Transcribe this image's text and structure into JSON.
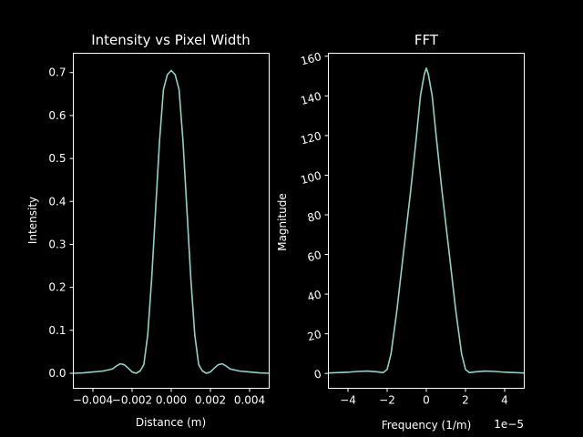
{
  "chart_data": [
    {
      "type": "line",
      "title": "Intensity vs Pixel Width",
      "xlabel": "Distance (m)",
      "ylabel": "Intensity",
      "xlim": [
        -0.005,
        0.005
      ],
      "ylim": [
        -0.035,
        0.745
      ],
      "grid": false,
      "x_ticks": [
        -0.004,
        -0.002,
        0.0,
        0.002,
        0.004
      ],
      "x_tick_labels": [
        "−0.004",
        "−0.002",
        "0.000",
        "0.002",
        "0.004"
      ],
      "y_ticks": [
        0.0,
        0.1,
        0.2,
        0.3,
        0.4,
        0.5,
        0.6,
        0.7
      ],
      "y_tick_labels": [
        "0.0",
        "0.1",
        "0.2",
        "0.3",
        "0.4",
        "0.5",
        "0.6",
        "0.7"
      ],
      "series": [
        {
          "color": "#8dd3c7",
          "x": [
            -0.005,
            -0.0045,
            -0.004,
            -0.0035,
            -0.003,
            -0.0028,
            -0.0026,
            -0.0024,
            -0.0022,
            -0.002,
            -0.0018,
            -0.0016,
            -0.0015,
            -0.0014,
            -0.0012,
            -0.001,
            -0.0008,
            -0.0006,
            -0.0004,
            -0.0002,
            -0.0001,
            0.0,
            0.0001,
            0.0002,
            0.0004,
            0.0006,
            0.0008,
            0.001,
            0.0012,
            0.0014,
            0.0015,
            0.0016,
            0.0018,
            0.002,
            0.0022,
            0.0024,
            0.0026,
            0.0028,
            0.003,
            0.0035,
            0.004,
            0.0045,
            0.005
          ],
          "y": [
            0.0,
            0.001,
            0.003,
            0.005,
            0.01,
            0.017,
            0.022,
            0.02,
            0.012,
            0.003,
            0.0,
            0.005,
            0.012,
            0.02,
            0.09,
            0.22,
            0.38,
            0.54,
            0.66,
            0.695,
            0.7,
            0.705,
            0.7,
            0.695,
            0.66,
            0.54,
            0.38,
            0.22,
            0.09,
            0.02,
            0.012,
            0.005,
            0.0,
            0.003,
            0.012,
            0.02,
            0.022,
            0.017,
            0.01,
            0.005,
            0.003,
            0.001,
            0.0
          ]
        }
      ]
    },
    {
      "type": "line",
      "title": "FFT",
      "xlabel": "Frequency (1/m)",
      "ylabel": "Magnitude",
      "offset_text": "1e−5",
      "xlim": [
        -5,
        5
      ],
      "ylim": [
        -7.5,
        161.5
      ],
      "grid": false,
      "x_ticks": [
        -4,
        -2,
        0,
        2,
        4
      ],
      "x_tick_labels": [
        "−4",
        "−2",
        "0",
        "2",
        "4"
      ],
      "y_ticks": [
        0,
        20,
        40,
        60,
        80,
        100,
        120,
        140,
        160
      ],
      "y_tick_labels": [
        "0",
        "20",
        "40",
        "60",
        "80",
        "100",
        "120",
        "140",
        "160"
      ],
      "series": [
        {
          "color": "#8dd3c7",
          "x": [
            -5,
            -4,
            -3.5,
            -3,
            -2.5,
            -2.2,
            -2.0,
            -1.8,
            -1.5,
            -1.2,
            -1.0,
            -0.8,
            -0.5,
            -0.3,
            -0.1,
            0,
            0.1,
            0.3,
            0.5,
            0.8,
            1.0,
            1.2,
            1.5,
            1.8,
            2.0,
            2.2,
            2.5,
            3,
            3.5,
            4,
            5
          ],
          "y": [
            0.2,
            0.6,
            1.0,
            1.2,
            0.8,
            0.4,
            2.0,
            10,
            32,
            58,
            75,
            92,
            120,
            140,
            151,
            154,
            151,
            140,
            120,
            92,
            75,
            58,
            32,
            10,
            2.0,
            0.4,
            0.8,
            1.2,
            1.0,
            0.6,
            0.2
          ]
        }
      ]
    }
  ]
}
